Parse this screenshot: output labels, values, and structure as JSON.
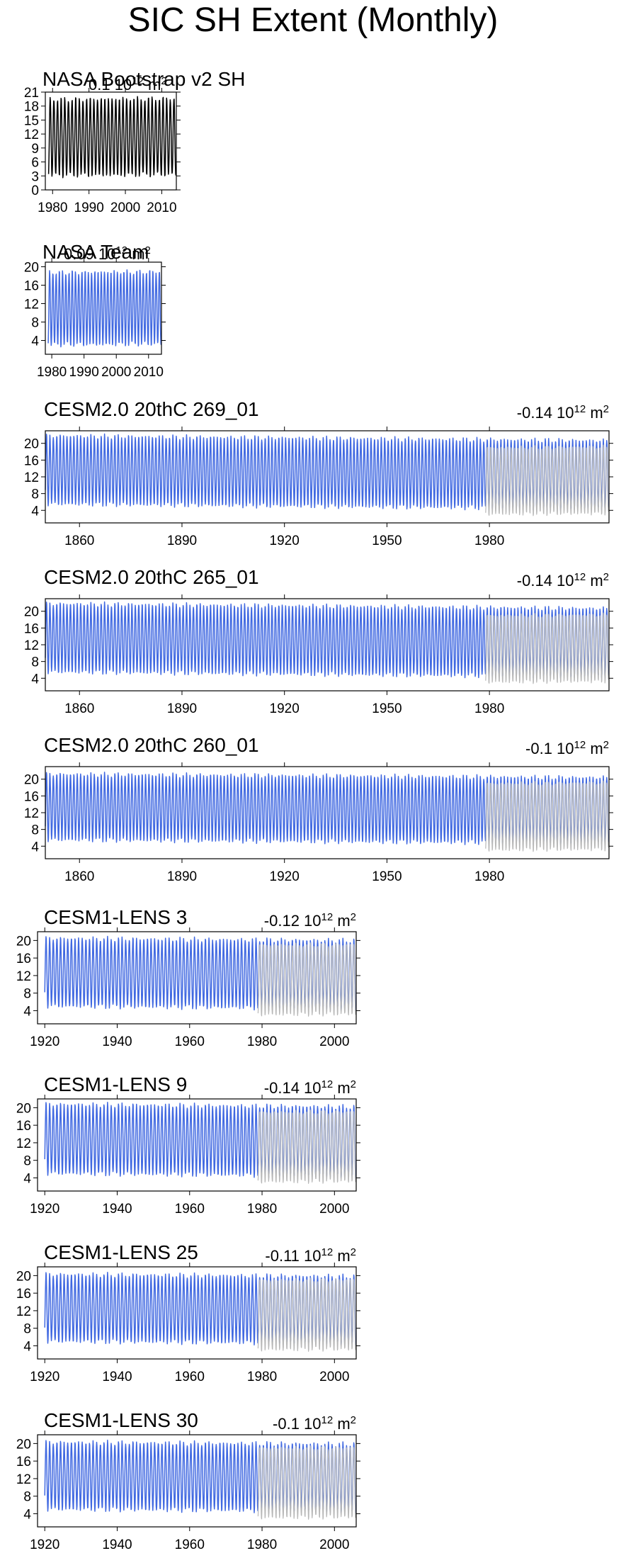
{
  "page": {
    "title": "SIC SH Extent (Monthly)"
  },
  "colors": {
    "model": "#4169e1",
    "obs": "#000000",
    "obs_overlay": "#b8b8b8"
  },
  "chart_data": [
    {
      "type": "line",
      "title": "NASA Bootstrap v2 SH",
      "trend": "0.1 10",
      "trend_exp": "12",
      "trend_unit": " m",
      "trend_unit_exp": "2",
      "xlim": [
        1978,
        2014
      ],
      "xticks": [
        1980,
        1990,
        2000,
        2010
      ],
      "ylim": [
        0,
        21
      ],
      "yticks": [
        0,
        3,
        6,
        9,
        12,
        15,
        18,
        21
      ],
      "series": [
        {
          "start": 1978.9,
          "end": 2013.9,
          "min": 3.0,
          "max": 19.5,
          "trend_per_year": 0.011,
          "color": "obs"
        }
      ]
    },
    {
      "type": "line",
      "title": "NASA Team",
      "trend": "0.09 10",
      "trend_exp": "12",
      "trend_unit": " m",
      "trend_unit_exp": "2",
      "xlim": [
        1978,
        2014
      ],
      "xticks": [
        1980,
        1990,
        2000,
        2010
      ],
      "ylim": [
        1,
        21
      ],
      "yticks": [
        4,
        8,
        12,
        16,
        20
      ],
      "series": [
        {
          "start": 1978.9,
          "end": 2013.9,
          "min": 3.0,
          "max": 18.8,
          "trend_per_year": 0.009,
          "color": "model"
        }
      ]
    },
    {
      "type": "line",
      "title": "CESM2.0 20thC 269_01",
      "trend": "-0.14 10",
      "trend_exp": "12",
      "trend_unit": " m",
      "trend_unit_exp": "2",
      "xlim": [
        1850,
        2015
      ],
      "xticks": [
        1860,
        1890,
        1920,
        1950,
        1980
      ],
      "ylim": [
        1,
        23
      ],
      "yticks": [
        4,
        8,
        12,
        16,
        20
      ],
      "series": [
        {
          "start": 1850,
          "end": 2014.9,
          "min": 5.5,
          "max": 21.8,
          "trend_per_year": -0.014,
          "color": "model"
        },
        {
          "start": 1978.9,
          "end": 2014.9,
          "min": 3.0,
          "max": 19.0,
          "trend_per_year": 0.011,
          "color": "obs_overlay"
        }
      ]
    },
    {
      "type": "line",
      "title": "CESM2.0 20thC 265_01",
      "trend": "-0.14 10",
      "trend_exp": "12",
      "trend_unit": " m",
      "trend_unit_exp": "2",
      "xlim": [
        1850,
        2015
      ],
      "xticks": [
        1860,
        1890,
        1920,
        1950,
        1980
      ],
      "ylim": [
        1,
        23
      ],
      "yticks": [
        4,
        8,
        12,
        16,
        20
      ],
      "series": [
        {
          "start": 1850,
          "end": 2014.9,
          "min": 5.5,
          "max": 21.8,
          "trend_per_year": -0.014,
          "color": "model"
        },
        {
          "start": 1978.9,
          "end": 2014.9,
          "min": 3.0,
          "max": 19.0,
          "trend_per_year": 0.011,
          "color": "obs_overlay"
        }
      ]
    },
    {
      "type": "line",
      "title": "CESM2.0 20thC 260_01",
      "trend": "-0.1 10",
      "trend_exp": "12",
      "trend_unit": " m",
      "trend_unit_exp": "2",
      "xlim": [
        1850,
        2015
      ],
      "xticks": [
        1860,
        1890,
        1920,
        1950,
        1980
      ],
      "ylim": [
        1,
        23
      ],
      "yticks": [
        4,
        8,
        12,
        16,
        20
      ],
      "series": [
        {
          "start": 1850,
          "end": 2014.9,
          "min": 5.5,
          "max": 21.2,
          "trend_per_year": -0.01,
          "color": "model"
        },
        {
          "start": 1978.9,
          "end": 2014.9,
          "min": 3.0,
          "max": 19.0,
          "trend_per_year": 0.011,
          "color": "obs_overlay"
        }
      ]
    },
    {
      "type": "line",
      "title": "CESM1-LENS 3",
      "trend": "-0.12 10",
      "trend_exp": "12",
      "trend_unit": " m",
      "trend_unit_exp": "2",
      "xlim": [
        1918,
        2006
      ],
      "xticks": [
        1920,
        1940,
        1960,
        1980,
        2000
      ],
      "ylim": [
        1,
        22
      ],
      "yticks": [
        4,
        8,
        12,
        16,
        20
      ],
      "series": [
        {
          "start": 1920,
          "end": 2005.9,
          "min": 5.0,
          "max": 20.5,
          "trend_per_year": -0.012,
          "color": "model"
        },
        {
          "start": 1978.9,
          "end": 2005.9,
          "min": 3.0,
          "max": 19.0,
          "trend_per_year": 0.011,
          "color": "obs_overlay"
        }
      ]
    },
    {
      "type": "line",
      "title": "CESM1-LENS 9",
      "trend": "-0.14 10",
      "trend_exp": "12",
      "trend_unit": " m",
      "trend_unit_exp": "2",
      "xlim": [
        1918,
        2006
      ],
      "xticks": [
        1920,
        1940,
        1960,
        1980,
        2000
      ],
      "ylim": [
        1,
        22
      ],
      "yticks": [
        4,
        8,
        12,
        16,
        20
      ],
      "series": [
        {
          "start": 1920,
          "end": 2005.9,
          "min": 5.0,
          "max": 20.8,
          "trend_per_year": -0.014,
          "color": "model"
        },
        {
          "start": 1978.9,
          "end": 2005.9,
          "min": 3.0,
          "max": 19.0,
          "trend_per_year": 0.011,
          "color": "obs_overlay"
        }
      ]
    },
    {
      "type": "line",
      "title": "CESM1-LENS 25",
      "trend": "-0.11 10",
      "trend_exp": "12",
      "trend_unit": " m",
      "trend_unit_exp": "2",
      "xlim": [
        1918,
        2006
      ],
      "xticks": [
        1920,
        1940,
        1960,
        1980,
        2000
      ],
      "ylim": [
        1,
        22
      ],
      "yticks": [
        4,
        8,
        12,
        16,
        20
      ],
      "series": [
        {
          "start": 1920,
          "end": 2005.9,
          "min": 5.0,
          "max": 20.3,
          "trend_per_year": -0.011,
          "color": "model"
        },
        {
          "start": 1978.9,
          "end": 2005.9,
          "min": 3.0,
          "max": 19.0,
          "trend_per_year": 0.011,
          "color": "obs_overlay"
        }
      ]
    },
    {
      "type": "line",
      "title": "CESM1-LENS 30",
      "trend": "-0.1 10",
      "trend_exp": "12",
      "trend_unit": " m",
      "trend_unit_exp": "2",
      "xlim": [
        1918,
        2006
      ],
      "xticks": [
        1920,
        1940,
        1960,
        1980,
        2000
      ],
      "ylim": [
        1,
        22
      ],
      "yticks": [
        4,
        8,
        12,
        16,
        20
      ],
      "series": [
        {
          "start": 1920,
          "end": 2005.9,
          "min": 5.0,
          "max": 20.3,
          "trend_per_year": -0.01,
          "color": "model"
        },
        {
          "start": 1978.9,
          "end": 2005.9,
          "min": 3.0,
          "max": 19.0,
          "trend_per_year": 0.011,
          "color": "obs_overlay"
        }
      ]
    }
  ]
}
